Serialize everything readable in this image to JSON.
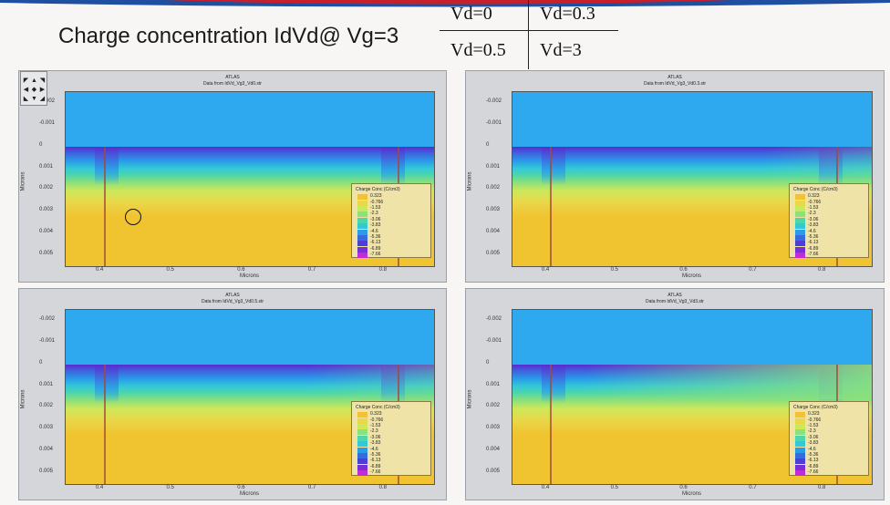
{
  "slide": {
    "title": "Charge concentration IdVd@ Vg=3",
    "vd_table": [
      "Vd=0",
      "Vd=0.3",
      "Vd=0.5",
      "Vd=3"
    ]
  },
  "panels": [
    {
      "app": "ATLAS",
      "subtitle": "Data from IdVd_Vg3_Vd0.str",
      "vd": 0
    },
    {
      "app": "ATLAS",
      "subtitle": "Data from IdVd_Vg3_Vd0.3.str",
      "vd": 0.3
    },
    {
      "app": "ATLAS",
      "subtitle": "Data from IdVd_Vg3_Vd0.5.str",
      "vd": 0.5
    },
    {
      "app": "ATLAS",
      "subtitle": "Data from IdVd_Vg3_Vd3.str",
      "vd": 3
    }
  ],
  "axes": {
    "xlabel": "Microns",
    "ylabel": "Microns",
    "x_ticks": [
      "0.4",
      "0.5",
      "0.6",
      "0.7",
      "0.8"
    ],
    "y_ticks": [
      "-0.002",
      "-0.001",
      "0",
      "0.001",
      "0.002",
      "0.003",
      "0.004",
      "0.005"
    ]
  },
  "colorbar": {
    "title": "Charge Conc (C/cm3)",
    "levels": [
      "0.323",
      "-0.766",
      "-1.53",
      "-2.3",
      "-3.06",
      "-3.83",
      "-4.6",
      "-5.36",
      "-6.13",
      "-6.89",
      "-7.66"
    ],
    "colors": [
      "#f2c230",
      "#e8d84a",
      "#cde85a",
      "#8ee07a",
      "#4fd6a8",
      "#32c8d8",
      "#2b9be8",
      "#3a6ae0",
      "#4b3fd6",
      "#7a2ed6",
      "#c02cd6"
    ]
  },
  "colors": {
    "oxide": "#2ea8ef",
    "channel_deep": "#5a2ad0",
    "substrate": "#f0c431",
    "electrode": "#a34a3a",
    "banner_blue": "#1f4fa0",
    "banner_red": "#c8202a"
  }
}
